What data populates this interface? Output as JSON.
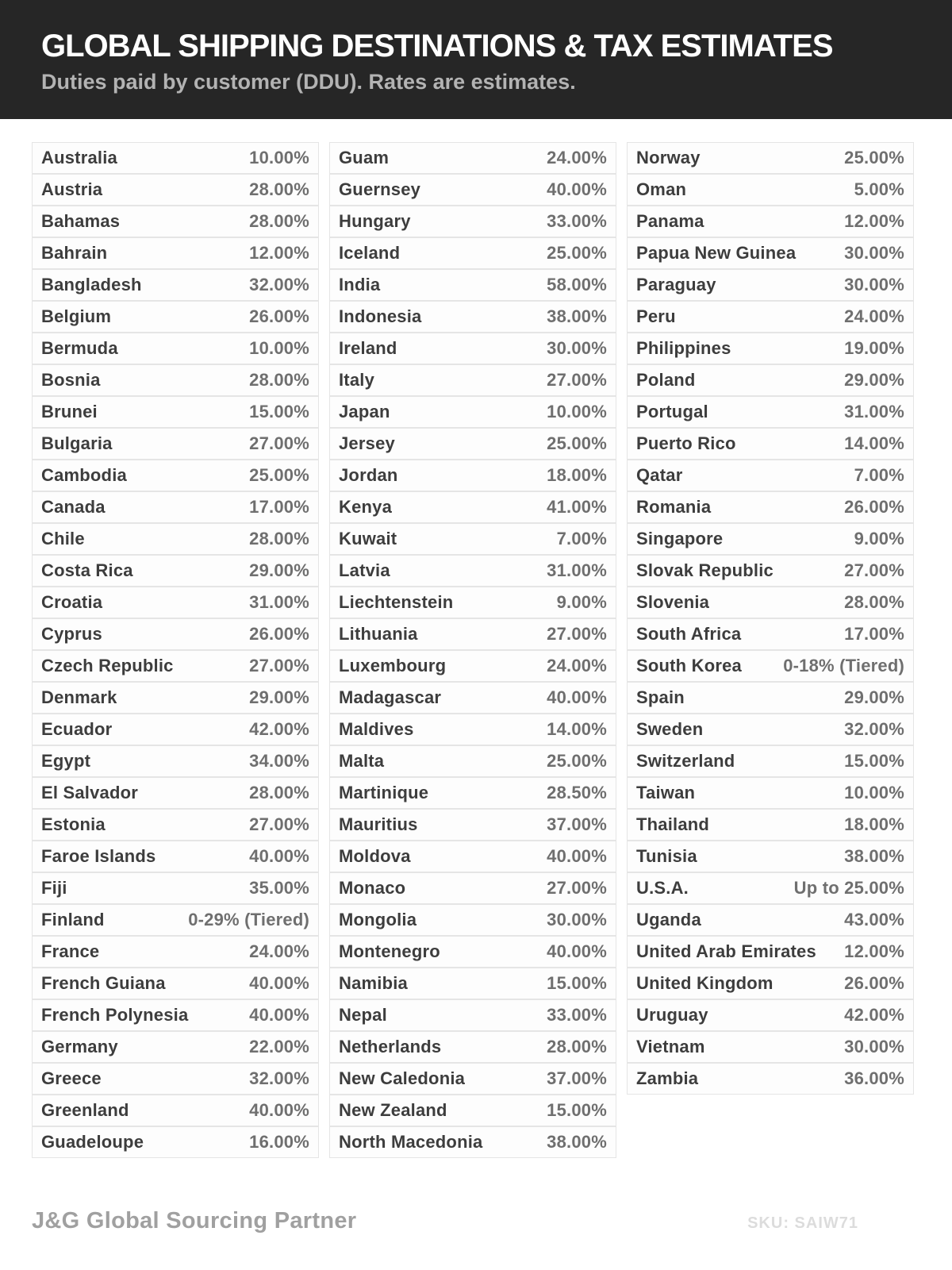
{
  "header": {
    "title": "GLOBAL SHIPPING DESTINATIONS & TAX ESTIMATES",
    "subtitle": "Duties paid by customer (DDU). Rates are estimates."
  },
  "footer": {
    "brand": "J&G Global Sourcing Partner",
    "sku": "SKU: SAIW71"
  },
  "colors": {
    "header_bg": "#262626",
    "title": "#ffffff",
    "subtitle": "#b3b3b3",
    "country": "#3d3d3d",
    "rate": "#6f6f6f",
    "row_border": "#e5e5e5",
    "row_bg": "#fdfdfd",
    "brand": "#a0a0a0",
    "sku": "#dcdcdc"
  },
  "table": {
    "columns": [
      [
        {
          "country": "Australia",
          "rate": "10.00%"
        },
        {
          "country": "Austria",
          "rate": "28.00%"
        },
        {
          "country": "Bahamas",
          "rate": "28.00%"
        },
        {
          "country": "Bahrain",
          "rate": "12.00%"
        },
        {
          "country": "Bangladesh",
          "rate": "32.00%"
        },
        {
          "country": "Belgium",
          "rate": "26.00%"
        },
        {
          "country": "Bermuda",
          "rate": "10.00%"
        },
        {
          "country": "Bosnia",
          "rate": "28.00%"
        },
        {
          "country": "Brunei",
          "rate": "15.00%"
        },
        {
          "country": "Bulgaria",
          "rate": "27.00%"
        },
        {
          "country": "Cambodia",
          "rate": "25.00%"
        },
        {
          "country": "Canada",
          "rate": "17.00%"
        },
        {
          "country": "Chile",
          "rate": "28.00%"
        },
        {
          "country": "Costa Rica",
          "rate": "29.00%"
        },
        {
          "country": "Croatia",
          "rate": "31.00%"
        },
        {
          "country": "Cyprus",
          "rate": "26.00%"
        },
        {
          "country": "Czech Republic",
          "rate": "27.00%"
        },
        {
          "country": "Denmark",
          "rate": "29.00%"
        },
        {
          "country": "Ecuador",
          "rate": "42.00%"
        },
        {
          "country": "Egypt",
          "rate": "34.00%"
        },
        {
          "country": "El Salvador",
          "rate": "28.00%"
        },
        {
          "country": "Estonia",
          "rate": "27.00%"
        },
        {
          "country": "Faroe Islands",
          "rate": "40.00%"
        },
        {
          "country": "Fiji",
          "rate": "35.00%"
        },
        {
          "country": "Finland",
          "rate": "0-29% (Tiered)"
        },
        {
          "country": "France",
          "rate": "24.00%"
        },
        {
          "country": "French Guiana",
          "rate": "40.00%"
        },
        {
          "country": "French Polynesia",
          "rate": "40.00%"
        },
        {
          "country": "Germany",
          "rate": "22.00%"
        },
        {
          "country": "Greece",
          "rate": "32.00%"
        },
        {
          "country": "Greenland",
          "rate": "40.00%"
        },
        {
          "country": "Guadeloupe",
          "rate": "16.00%"
        }
      ],
      [
        {
          "country": "Guam",
          "rate": "24.00%"
        },
        {
          "country": "Guernsey",
          "rate": "40.00%"
        },
        {
          "country": "Hungary",
          "rate": "33.00%"
        },
        {
          "country": "Iceland",
          "rate": "25.00%"
        },
        {
          "country": "India",
          "rate": "58.00%"
        },
        {
          "country": "Indonesia",
          "rate": "38.00%"
        },
        {
          "country": "Ireland",
          "rate": "30.00%"
        },
        {
          "country": "Italy",
          "rate": "27.00%"
        },
        {
          "country": "Japan",
          "rate": "10.00%"
        },
        {
          "country": "Jersey",
          "rate": "25.00%"
        },
        {
          "country": "Jordan",
          "rate": "18.00%"
        },
        {
          "country": "Kenya",
          "rate": "41.00%"
        },
        {
          "country": "Kuwait",
          "rate": "7.00%"
        },
        {
          "country": "Latvia",
          "rate": "31.00%"
        },
        {
          "country": "Liechtenstein",
          "rate": "9.00%"
        },
        {
          "country": "Lithuania",
          "rate": "27.00%"
        },
        {
          "country": "Luxembourg",
          "rate": "24.00%"
        },
        {
          "country": "Madagascar",
          "rate": "40.00%"
        },
        {
          "country": "Maldives",
          "rate": "14.00%"
        },
        {
          "country": "Malta",
          "rate": "25.00%"
        },
        {
          "country": "Martinique",
          "rate": "28.50%"
        },
        {
          "country": "Mauritius",
          "rate": "37.00%"
        },
        {
          "country": "Moldova",
          "rate": "40.00%"
        },
        {
          "country": "Monaco",
          "rate": "27.00%"
        },
        {
          "country": "Mongolia",
          "rate": "30.00%"
        },
        {
          "country": "Montenegro",
          "rate": "40.00%"
        },
        {
          "country": "Namibia",
          "rate": "15.00%"
        },
        {
          "country": "Nepal",
          "rate": "33.00%"
        },
        {
          "country": "Netherlands",
          "rate": "28.00%"
        },
        {
          "country": "New Caledonia",
          "rate": "37.00%"
        },
        {
          "country": "New Zealand",
          "rate": "15.00%"
        },
        {
          "country": "North Macedonia",
          "rate": "38.00%"
        }
      ],
      [
        {
          "country": "Norway",
          "rate": "25.00%"
        },
        {
          "country": "Oman",
          "rate": "5.00%"
        },
        {
          "country": "Panama",
          "rate": "12.00%"
        },
        {
          "country": "Papua New Guinea",
          "rate": "30.00%"
        },
        {
          "country": "Paraguay",
          "rate": "30.00%"
        },
        {
          "country": "Peru",
          "rate": "24.00%"
        },
        {
          "country": "Philippines",
          "rate": "19.00%"
        },
        {
          "country": "Poland",
          "rate": "29.00%"
        },
        {
          "country": "Portugal",
          "rate": "31.00%"
        },
        {
          "country": "Puerto Rico",
          "rate": "14.00%"
        },
        {
          "country": "Qatar",
          "rate": "7.00%"
        },
        {
          "country": "Romania",
          "rate": "26.00%"
        },
        {
          "country": "Singapore",
          "rate": "9.00%"
        },
        {
          "country": "Slovak Republic",
          "rate": "27.00%"
        },
        {
          "country": "Slovenia",
          "rate": "28.00%"
        },
        {
          "country": "South Africa",
          "rate": "17.00%"
        },
        {
          "country": "South Korea",
          "rate": "0-18% (Tiered)"
        },
        {
          "country": "Spain",
          "rate": "29.00%"
        },
        {
          "country": "Sweden",
          "rate": "32.00%"
        },
        {
          "country": "Switzerland",
          "rate": "15.00%"
        },
        {
          "country": "Taiwan",
          "rate": "10.00%"
        },
        {
          "country": "Thailand",
          "rate": "18.00%"
        },
        {
          "country": "Tunisia",
          "rate": "38.00%"
        },
        {
          "country": "U.S.A.",
          "rate": "Up to 25.00%"
        },
        {
          "country": "Uganda",
          "rate": "43.00%"
        },
        {
          "country": "United Arab Emirates",
          "rate": "12.00%"
        },
        {
          "country": "United Kingdom",
          "rate": "26.00%"
        },
        {
          "country": "Uruguay",
          "rate": "42.00%"
        },
        {
          "country": "Vietnam",
          "rate": "30.00%"
        },
        {
          "country": "Zambia",
          "rate": "36.00%"
        }
      ]
    ]
  }
}
